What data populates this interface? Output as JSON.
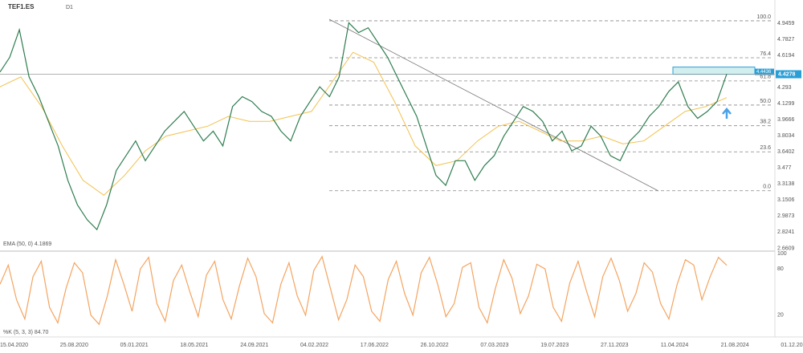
{
  "chart_data": [
    {
      "type": "line",
      "title": "TEF1.ES",
      "timeframe": "D1",
      "color": "#2e7d4f",
      "values": [
        4.45,
        4.6,
        4.88,
        4.4,
        4.2,
        3.95,
        3.7,
        3.35,
        3.1,
        2.95,
        2.85,
        3.1,
        3.45,
        3.6,
        3.75,
        3.55,
        3.7,
        3.85,
        3.95,
        4.05,
        3.9,
        3.75,
        3.85,
        3.7,
        4.1,
        4.2,
        4.15,
        4.05,
        4.0,
        3.85,
        3.75,
        4.0,
        4.15,
        4.3,
        4.2,
        4.4,
        4.95,
        4.85,
        4.9,
        4.75,
        4.6,
        4.4,
        4.2,
        4.0,
        3.7,
        3.4,
        3.3,
        3.55,
        3.55,
        3.35,
        3.5,
        3.6,
        3.8,
        3.95,
        4.1,
        4.05,
        3.95,
        3.75,
        3.85,
        3.65,
        3.7,
        3.9,
        3.8,
        3.6,
        3.55,
        3.75,
        3.85,
        4.0,
        4.1,
        4.25,
        4.35,
        4.1,
        3.98,
        4.05,
        4.15,
        4.43
      ],
      "ema": {
        "name": "EMA (50, 0) 4.1869",
        "color": "#f2c14e",
        "values": [
          4.3,
          4.4,
          4.1,
          3.7,
          3.35,
          3.2,
          3.4,
          3.65,
          3.8,
          3.85,
          3.9,
          4.0,
          3.95,
          3.95,
          4.0,
          4.05,
          4.35,
          4.65,
          4.55,
          4.15,
          3.7,
          3.5,
          3.55,
          3.75,
          3.9,
          3.95,
          3.85,
          3.75,
          3.75,
          3.8,
          3.72,
          3.75,
          3.9,
          4.05,
          4.1,
          4.19
        ]
      },
      "ylim": [
        2.64,
        5.1
      ],
      "yticks": [
        4.9459,
        4.7827,
        4.6194,
        4.293,
        4.1299,
        3.9666,
        3.8034,
        3.6402,
        3.477,
        3.3138,
        3.1506,
        2.9873,
        2.8241,
        2.6609
      ],
      "fib_levels": [
        {
          "value": 4.97,
          "label": "100.0"
        },
        {
          "value": 4.595,
          "label": "76.4"
        },
        {
          "value": 4.36,
          "label": "61.8"
        },
        {
          "value": 4.115,
          "label": "50.0"
        },
        {
          "value": 3.905,
          "label": "38.2"
        },
        {
          "value": 3.64,
          "label": "23.6"
        },
        {
          "value": 3.245,
          "label": "0.0"
        }
      ],
      "last_price": 4.4278,
      "resistance": 4.4436,
      "x_labels": [
        "15.04.2020",
        "25.08.2020",
        "05.01.2021",
        "18.05.2021",
        "24.09.2021",
        "04.02.2022",
        "17.06.2022",
        "26.10.2022",
        "07.03.2023",
        "19.07.2023",
        "27.11.2023",
        "11.04.2024",
        "21.08.2024",
        "01.12.2024"
      ]
    },
    {
      "type": "line",
      "name": "%K (5, 3, 3) 84.70",
      "color": "#f4a460",
      "ylim": [
        0,
        100
      ],
      "yticks": [
        20,
        80,
        100
      ],
      "values": [
        60,
        85,
        40,
        15,
        70,
        90,
        30,
        10,
        55,
        88,
        75,
        20,
        8,
        45,
        92,
        60,
        25,
        80,
        95,
        35,
        12,
        65,
        85,
        50,
        18,
        72,
        90,
        40,
        15,
        58,
        94,
        70,
        22,
        10,
        60,
        88,
        45,
        20,
        78,
        96,
        55,
        14,
        40,
        85,
        70,
        25,
        12,
        66,
        90,
        48,
        20,
        75,
        95,
        60,
        18,
        35,
        82,
        88,
        30,
        10,
        55,
        92,
        68,
        22,
        45,
        86,
        80,
        30,
        12,
        62,
        90,
        52,
        18,
        70,
        94,
        65,
        25,
        48,
        88,
        76,
        35,
        15,
        60,
        92,
        85,
        40,
        70,
        95,
        84.7
      ]
    }
  ]
}
